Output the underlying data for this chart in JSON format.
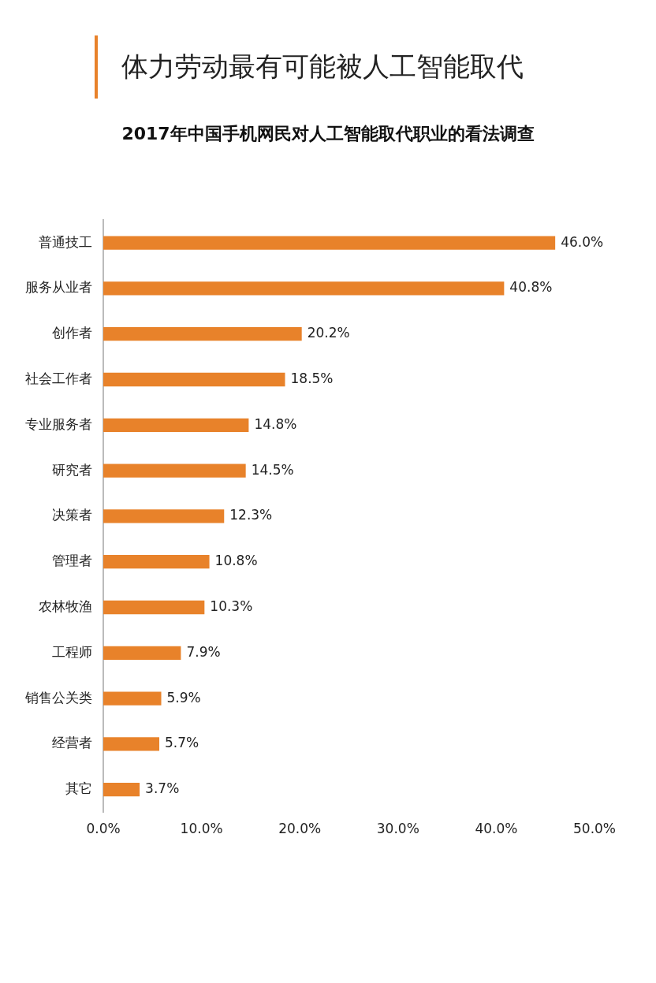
{
  "chart_data": {
    "type": "bar",
    "orientation": "horizontal",
    "title": "体力劳动最有可能被人工智能取代",
    "subtitle": "2017年中国手机网民对人工智能取代职业的看法调查",
    "categories": [
      "普通技工",
      "服务从业者",
      "创作者",
      "社会工作者",
      "专业服务者",
      "研究者",
      "决策者",
      "管理者",
      "农林牧渔",
      "工程师",
      "销售公关类",
      "经营者",
      "其它"
    ],
    "values": [
      46.0,
      40.8,
      20.2,
      18.5,
      14.8,
      14.5,
      12.3,
      10.8,
      10.3,
      7.9,
      5.9,
      5.7,
      3.7
    ],
    "value_labels": [
      "46.0%",
      "40.8%",
      "20.2%",
      "18.5%",
      "14.8%",
      "14.5%",
      "12.3%",
      "10.8%",
      "10.3%",
      "7.9%",
      "5.9%",
      "5.7%",
      "3.7%"
    ],
    "color": "#e8822a",
    "xlim": [
      0,
      50
    ],
    "xticks": [
      {
        "value": 0,
        "label": "0.0%"
      },
      {
        "value": 10,
        "label": "10.0%"
      },
      {
        "value": 20,
        "label": "20.0%"
      },
      {
        "value": 30,
        "label": "30.0%"
      },
      {
        "value": 40,
        "label": "40.0%"
      },
      {
        "value": 50,
        "label": "50.0%"
      }
    ],
    "grid": false,
    "legend": false
  }
}
